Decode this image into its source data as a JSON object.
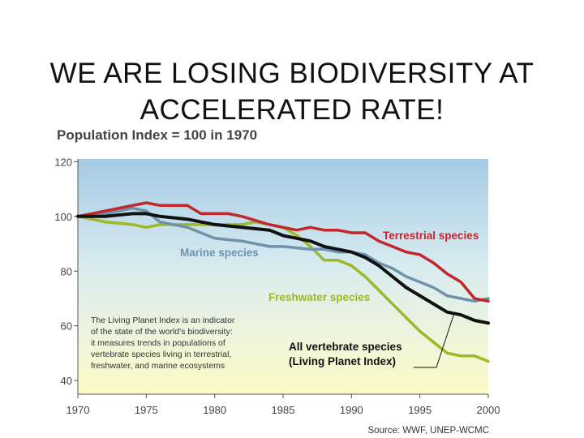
{
  "slide": {
    "title_line1": "WE ARE LOSING BIODIVERSITY AT",
    "title_line2": "ACCELERATED RATE!"
  },
  "chart_data": {
    "type": "line",
    "title": "Population Index = 100 in 1970",
    "xlabel": "",
    "ylabel": "",
    "xlim": [
      1970,
      2000
    ],
    "ylim": [
      35,
      121
    ],
    "x_ticks": [
      1970,
      1975,
      1980,
      1985,
      1990,
      1995,
      2000
    ],
    "y_ticks": [
      40,
      60,
      80,
      100,
      120
    ],
    "grid": false,
    "source": "Source: WWF, UNEP-WCMC",
    "note": "The Living Planet Index is an indicator of the state of the world's biodiversity: it measures trends in populations of vertebrate species living in terrestrial, freshwater, and marine ecosystems",
    "note_lines": [
      "The Living Planet Index is an indicator",
      "of the state of the world's biodiversity:",
      "it measures trends in populations of",
      "vertebrate species living in terrestrial,",
      "freshwater, and marine ecosystems"
    ],
    "series": [
      {
        "name": "Terrestrial species",
        "label_lines": [
          "Terrestrial species"
        ],
        "color": "#c0282d",
        "x": [
          1970,
          1972,
          1974,
          1975,
          1976,
          1978,
          1979,
          1980,
          1981,
          1982,
          1984,
          1986,
          1987,
          1988,
          1989,
          1990,
          1991,
          1992,
          1993,
          1994,
          1995,
          1996,
          1997,
          1998,
          1999,
          2000
        ],
        "values": [
          100,
          102,
          104,
          105,
          104,
          104,
          101,
          101,
          101,
          100,
          97,
          95,
          96,
          95,
          95,
          94,
          94,
          91,
          89,
          87,
          86,
          83,
          79,
          76,
          70,
          69
        ]
      },
      {
        "name": "Marine species",
        "label_lines": [
          "Marine species"
        ],
        "color": "#6f93ad",
        "x": [
          1970,
          1972,
          1974,
          1975,
          1976,
          1978,
          1980,
          1982,
          1984,
          1985,
          1987,
          1988,
          1989,
          1990,
          1991,
          1992,
          1993,
          1994,
          1995,
          1996,
          1997,
          1998,
          1999,
          2000
        ],
        "values": [
          100,
          101,
          103,
          102,
          98,
          96,
          92,
          91,
          89,
          89,
          88,
          88,
          87,
          87,
          86,
          83,
          81,
          78,
          76,
          74,
          71,
          70,
          69,
          70
        ]
      },
      {
        "name": "Freshwater species",
        "label_lines": [
          "Freshwater species"
        ],
        "color": "#9db829",
        "x": [
          1970,
          1972,
          1974,
          1975,
          1976,
          1978,
          1980,
          1982,
          1983,
          1984,
          1985,
          1986,
          1987,
          1988,
          1989,
          1990,
          1991,
          1992,
          1993,
          1994,
          1995,
          1996,
          1997,
          1998,
          1999,
          2000
        ],
        "values": [
          100,
          98,
          97,
          96,
          97,
          97,
          97,
          97,
          98,
          97,
          96,
          93,
          89,
          84,
          84,
          82,
          78,
          73,
          68,
          63,
          58,
          54,
          50,
          49,
          49,
          47
        ]
      },
      {
        "name": "All vertebrate species (Living Planet Index)",
        "label_lines": [
          "All vertebrate species",
          "(Living Planet Index)"
        ],
        "color": "#111111",
        "x": [
          1970,
          1972,
          1974,
          1975,
          1976,
          1978,
          1980,
          1982,
          1984,
          1985,
          1986,
          1987,
          1988,
          1989,
          1990,
          1991,
          1992,
          1993,
          1994,
          1995,
          1996,
          1997,
          1998,
          1999,
          2000
        ],
        "values": [
          100,
          100,
          101,
          101,
          100,
          99,
          97,
          96,
          95,
          93,
          92,
          91,
          89,
          88,
          87,
          85,
          82,
          78,
          74,
          71,
          68,
          65,
          64,
          62,
          61
        ]
      }
    ]
  }
}
